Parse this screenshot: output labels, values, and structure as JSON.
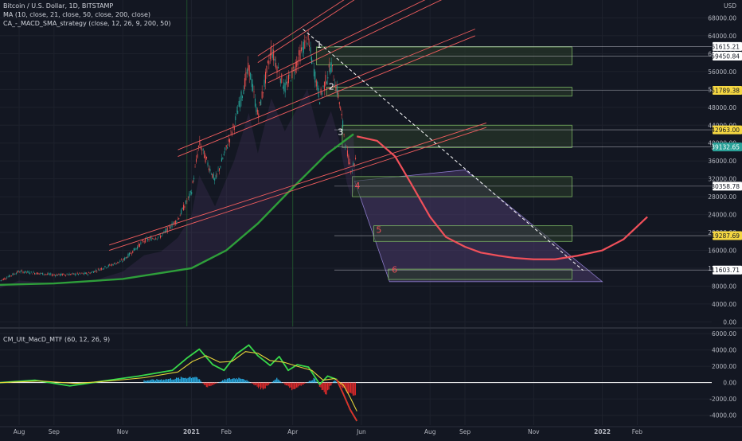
{
  "header": {
    "symbol": "Bitcoin / U.S. Dollar, 1D, BITSTAMP",
    "ma_indicator": "MA (10, close, 21, close, 50, close, 200, close)",
    "strategy_indicator": "CA_-_MACD_SMA_strategy (close, 12, 26, 9, 200, 50)",
    "oscillator_indicator": "CM_Ult_MacD_MTF (60, 12, 26, 9)",
    "currency": "USD"
  },
  "colors": {
    "background": "#131722",
    "grid": "#1e222d",
    "channel": "#f05d5e",
    "zone_fill": "#2a3a2a",
    "zone_border": "#7bb662",
    "projection_fill": "#4a3a6a",
    "forecast_curve": "#f0505a",
    "ma_green": "#2e9e3a",
    "macd_green": "#38d84a",
    "macd_red": "#e02a2a",
    "macd_yellow": "#e6d43a",
    "hist_blue": "#26a9e0",
    "label_yellow": "#f5d742",
    "label_teal": "#2aa198"
  },
  "chart_data": [
    {
      "type": "candlestick",
      "title": "Bitcoin / U.S. Dollar, 1D, BITSTAMP",
      "x_ticks": [
        "Aug",
        "Sep",
        "Nov",
        "2021",
        "Feb",
        "Apr",
        "Jun",
        "Aug",
        "Sep",
        "Nov",
        "2022",
        "Feb"
      ],
      "y_ticks": [
        68000,
        64000,
        60000,
        56000,
        52000,
        48000,
        44000,
        40000,
        36000,
        32000,
        28000,
        24000,
        20000,
        16000,
        12000,
        8000,
        4000,
        0
      ],
      "y_ticks_labels": [
        "68000.00",
        "64000.00",
        "60000.00",
        "56000.00",
        "52000.00",
        "48000.00",
        "44000.00",
        "40000.00",
        "36000.00",
        "32000.00",
        "28000.00",
        "24000.00",
        "20000.00",
        "16000.00",
        "12000.00",
        "8000.00",
        "4000.00",
        "0.00"
      ],
      "ylim": [
        -1000,
        72000
      ],
      "price_levels": [
        {
          "label": "61615.21",
          "value": 61615.21,
          "style": "white"
        },
        {
          "label": "59450.84",
          "value": 59450.84,
          "style": "white"
        },
        {
          "label": "51789.38",
          "value": 51789.38,
          "style": "yellow"
        },
        {
          "label": "42963.00",
          "value": 42963.0,
          "style": "yellow"
        },
        {
          "label": "39132.65",
          "value": 39132.65,
          "style": "teal"
        },
        {
          "label": "30358.78",
          "value": 30358.78,
          "style": "white"
        },
        {
          "label": "19287.69",
          "value": 19287.69,
          "style": "yellow"
        },
        {
          "label": "11603.71",
          "value": 11603.71,
          "style": "white"
        }
      ],
      "wave_labels": [
        "1",
        "2",
        "3",
        "4",
        "5",
        "6"
      ],
      "extra_labels": [
        "8000.00"
      ],
      "price_series": {
        "name": "BTCUSD",
        "x": [
          "2020-07-15",
          "2020-08-01",
          "2020-09-01",
          "2020-10-01",
          "2020-11-01",
          "2020-11-20",
          "2020-12-05",
          "2020-12-20",
          "2021-01-01",
          "2021-01-08",
          "2021-01-22",
          "2021-02-08",
          "2021-02-21",
          "2021-03-01",
          "2021-03-13",
          "2021-03-25",
          "2021-04-14",
          "2021-04-25",
          "2021-05-05",
          "2021-05-12",
          "2021-05-19",
          "2021-05-23",
          "2021-05-27"
        ],
        "values": [
          9200,
          11300,
          10500,
          10800,
          13700,
          18200,
          19200,
          23000,
          29000,
          40000,
          31500,
          44000,
          57000,
          46000,
          61000,
          52000,
          63500,
          50000,
          57500,
          50000,
          38000,
          34000,
          36500
        ]
      },
      "ma200": {
        "name": "MA 200",
        "x": [
          "2020-07-15",
          "2020-09-01",
          "2020-11-01",
          "2021-01-01",
          "2021-02-01",
          "2021-03-01",
          "2021-04-01",
          "2021-05-01",
          "2021-05-25"
        ],
        "values": [
          8300,
          8600,
          9600,
          12000,
          16000,
          22000,
          30000,
          37500,
          42000
        ]
      },
      "forecast_curve": {
        "x": [
          "2021-05-28",
          "2021-06-15",
          "2021-07-01",
          "2021-07-15",
          "2021-08-01",
          "2021-08-15",
          "2021-09-01",
          "2021-09-15",
          "2021-10-01",
          "2021-10-15",
          "2021-11-01",
          "2021-11-20",
          "2021-12-10",
          "2022-01-01",
          "2022-01-20",
          "2022-02-10"
        ],
        "values": [
          41500,
          40500,
          37000,
          31000,
          23500,
          19000,
          16800,
          15500,
          14800,
          14300,
          14000,
          14000,
          14800,
          16000,
          18500,
          23500
        ]
      },
      "channels": [
        {
          "x": [
            "2020-12-20",
            "2021-09-10"
          ],
          "values": [
            37000,
            64000
          ]
        },
        {
          "x": [
            "2020-12-20",
            "2021-09-10"
          ],
          "values": [
            38500,
            65500
          ]
        },
        {
          "x": [
            "2021-03-01",
            "2021-08-25"
          ],
          "values": [
            58000,
            87000
          ]
        },
        {
          "x": [
            "2021-03-01",
            "2021-08-25"
          ],
          "values": [
            59500,
            88500
          ]
        },
        {
          "x": [
            "2020-10-20",
            "2021-09-20"
          ],
          "values": [
            16000,
            43500
          ]
        },
        {
          "x": [
            "2020-10-20",
            "2021-09-20"
          ],
          "values": [
            17200,
            44500
          ]
        },
        {
          "x": [
            "2021-03-10",
            "2021-12-01"
          ],
          "values": [
            53500,
            85500
          ]
        },
        {
          "x": [
            "2021-03-10",
            "2021-12-01"
          ],
          "values": [
            55000,
            87500
          ]
        }
      ],
      "zones": [
        {
          "x": [
            "2021-04-22",
            "2021-12-05"
          ],
          "values": [
            57500,
            61500
          ]
        },
        {
          "x": [
            "2021-05-01",
            "2021-12-05"
          ],
          "values": [
            50500,
            52500
          ]
        },
        {
          "x": [
            "2021-05-15",
            "2021-12-05"
          ],
          "values": [
            39000,
            44000
          ]
        },
        {
          "x": [
            "2021-05-24",
            "2021-12-05"
          ],
          "values": [
            28000,
            32500
          ]
        },
        {
          "x": [
            "2021-06-12",
            "2021-12-05"
          ],
          "values": [
            18000,
            21500
          ]
        },
        {
          "x": [
            "2021-06-25",
            "2021-12-05"
          ],
          "values": [
            9500,
            11800
          ]
        }
      ],
      "projection": {
        "x": [
          "2021-05-26",
          "2021-09-01",
          "2022-01-01",
          "2021-06-26"
        ],
        "values": [
          31500,
          34000,
          9000,
          9000
        ]
      },
      "trend_line": {
        "x": [
          "2021-04-10",
          "2021-12-15"
        ],
        "values": [
          65500,
          11500
        ]
      }
    },
    {
      "type": "line",
      "title": "CM_Ult_MacD_MTF (60, 12, 26, 9)",
      "y_ticks": [
        6000,
        4000,
        2000,
        0,
        -2000,
        -4000
      ],
      "y_ticks_labels": [
        "6000.00",
        "4000.00",
        "2000.00",
        "0.00",
        "-2000.00",
        "-4000.00"
      ],
      "ylim": [
        -5200,
        6500
      ],
      "series": [
        {
          "name": "MACD",
          "x": [
            "2020-07-15",
            "2020-08-15",
            "2020-09-15",
            "2020-10-15",
            "2020-11-15",
            "2020-12-15",
            "2020-12-28",
            "2021-01-08",
            "2021-01-20",
            "2021-01-30",
            "2021-02-10",
            "2021-02-21",
            "2021-03-01",
            "2021-03-12",
            "2021-03-20",
            "2021-03-28",
            "2021-04-05",
            "2021-04-15",
            "2021-04-25",
            "2021-05-02",
            "2021-05-10",
            "2021-05-16",
            "2021-05-22",
            "2021-05-28"
          ],
          "values": [
            0,
            300,
            -400,
            200,
            800,
            1500,
            3000,
            4100,
            2200,
            1500,
            3500,
            4600,
            3300,
            2100,
            3200,
            1500,
            2200,
            1900,
            -200,
            800,
            400,
            -1400,
            -3300,
            -4700
          ]
        },
        {
          "name": "Signal",
          "x": [
            "2020-07-15",
            "2020-08-20",
            "2020-09-20",
            "2020-10-20",
            "2020-11-20",
            "2020-12-20",
            "2021-01-02",
            "2021-01-14",
            "2021-01-26",
            "2021-02-06",
            "2021-02-18",
            "2021-03-01",
            "2021-03-12",
            "2021-03-24",
            "2021-04-05",
            "2021-04-18",
            "2021-04-28",
            "2021-05-08",
            "2021-05-16",
            "2021-05-22",
            "2021-05-28"
          ],
          "values": [
            0,
            200,
            -100,
            200,
            600,
            1300,
            2600,
            3300,
            2500,
            2600,
            3800,
            3600,
            2700,
            2500,
            2000,
            1500,
            300,
            500,
            -300,
            -1800,
            -3500
          ]
        }
      ],
      "histogram": {
        "x": [
          "2020-11-20",
          "2020-12-20",
          "2021-01-05",
          "2021-01-15",
          "2021-02-01",
          "2021-02-15",
          "2021-03-05",
          "2021-03-18",
          "2021-04-01",
          "2021-04-20",
          "2021-04-30",
          "2021-05-08",
          "2021-05-20",
          "2021-05-27"
        ],
        "values": [
          300,
          600,
          900,
          -700,
          500,
          700,
          -1000,
          600,
          -1100,
          600,
          -1600,
          400,
          -1300,
          -1800
        ]
      }
    }
  ]
}
